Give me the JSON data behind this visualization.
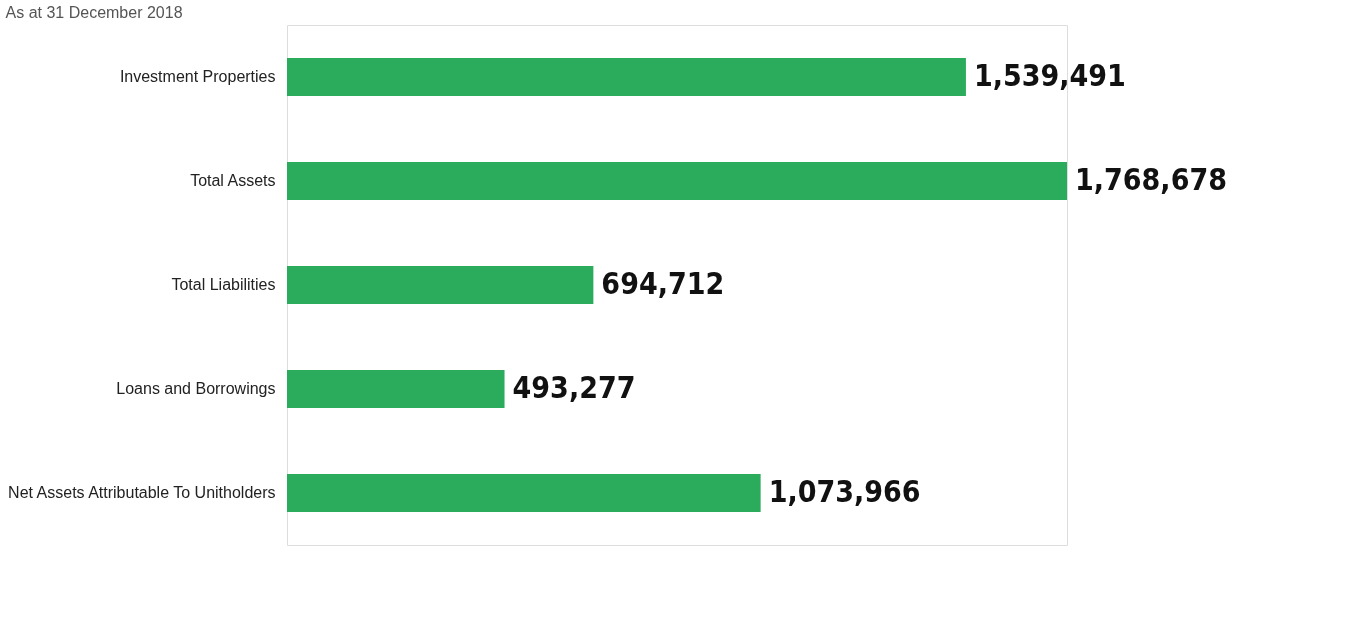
{
  "chart_data": {
    "type": "bar",
    "orientation": "horizontal",
    "title": "As at 31 December 2018",
    "categories": [
      "Investment Properties",
      "Total Assets",
      "Total Liabilities",
      "Loans and Borrowings",
      "Net Assets Attributable To Unitholders"
    ],
    "values": [
      1539491,
      1768678,
      694712,
      493277,
      1073966
    ],
    "value_labels": [
      "1,539,491",
      "1,768,678",
      "694,712",
      "493,277",
      "1,073,966"
    ],
    "color": "#2bab5c",
    "grid": false
  }
}
